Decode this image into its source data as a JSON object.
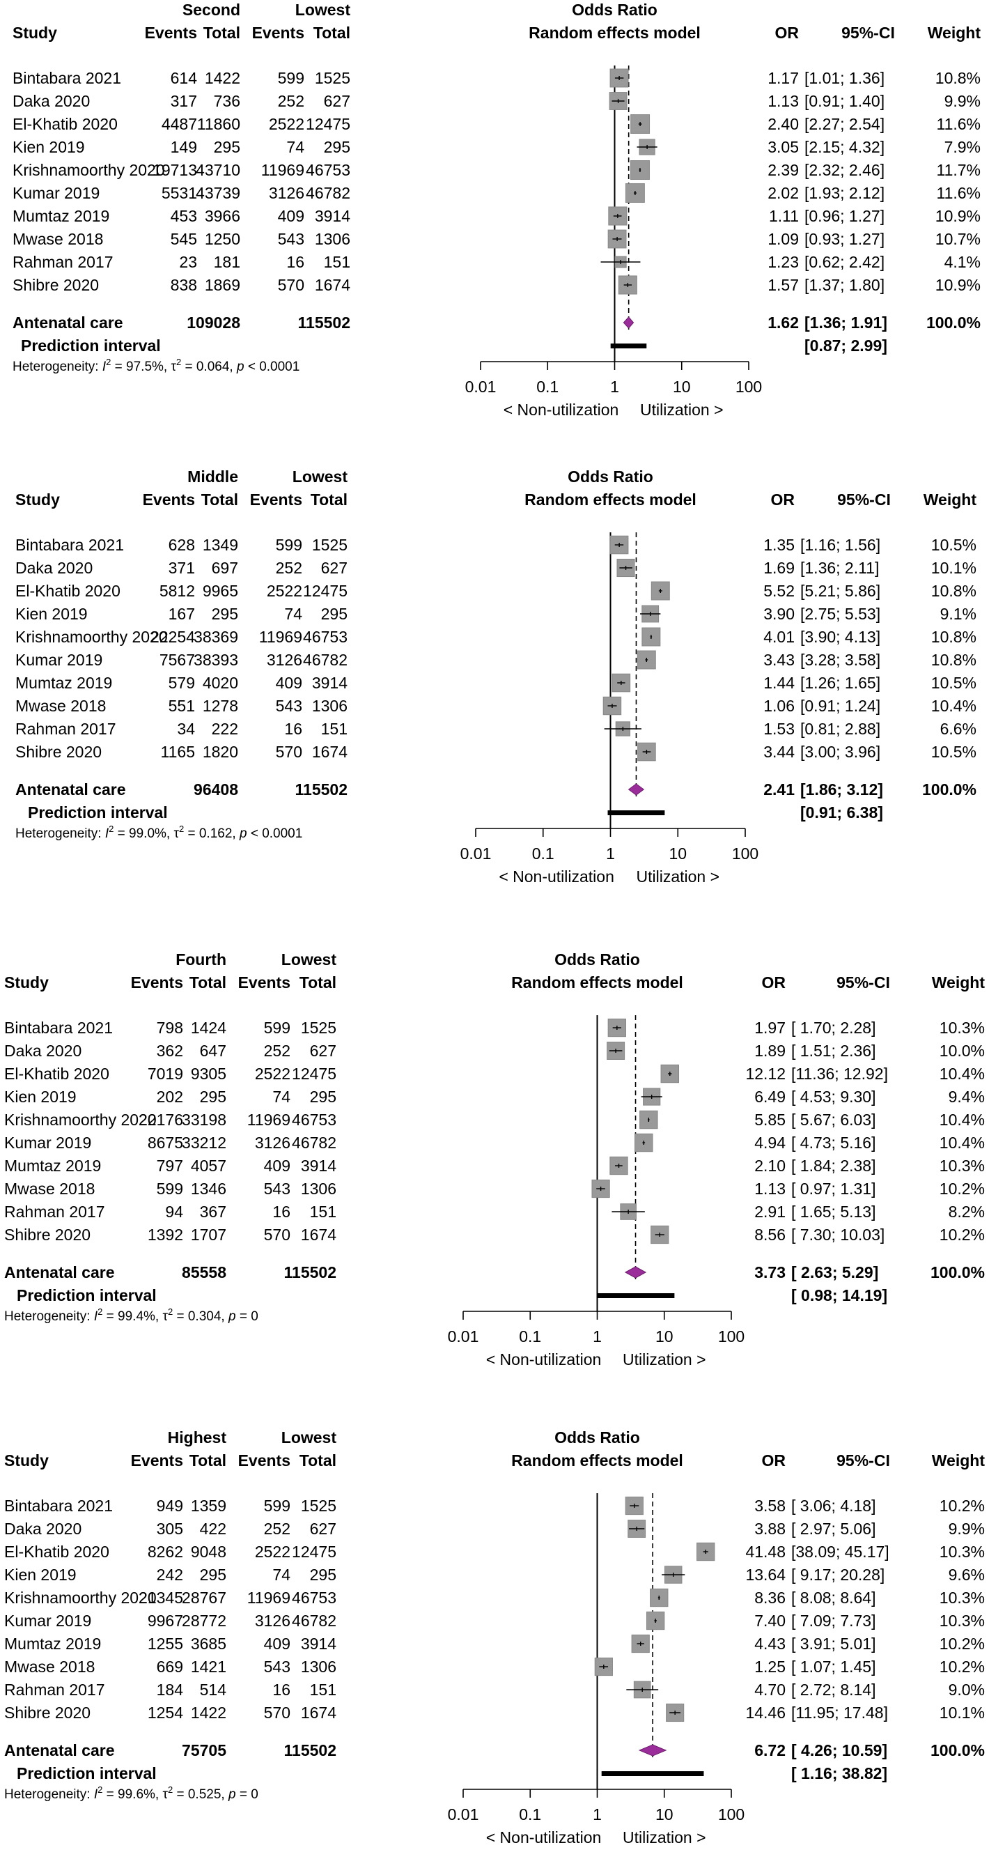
{
  "chart_data": [
    {
      "type": "forest",
      "group_exp": "Second",
      "group_ctrl": "Lowest",
      "title": "Odds Ratio",
      "subtitle": "Random effects model",
      "headers": {
        "study": "Study",
        "events": "Events",
        "total": "Total",
        "or": "OR",
        "ci": "95%-CI",
        "weight": "Weight"
      },
      "studies": [
        {
          "name": "Bintabara 2021",
          "e_exp": "614",
          "n_exp": "1422",
          "e_ctrl": "599",
          "n_ctrl": "1525",
          "or": 1.17,
          "lo": 1.01,
          "hi": 1.36,
          "weight": 10.8,
          "or_txt": "1.17",
          "ci_txt": "[1.01; 1.36]",
          "w_txt": "10.8%"
        },
        {
          "name": "Daka 2020",
          "e_exp": "317",
          "n_exp": "736",
          "e_ctrl": "252",
          "n_ctrl": "627",
          "or": 1.13,
          "lo": 0.91,
          "hi": 1.4,
          "weight": 9.9,
          "or_txt": "1.13",
          "ci_txt": "[0.91; 1.40]",
          "w_txt": "9.9%"
        },
        {
          "name": "El-Khatib 2020",
          "e_exp": "4487",
          "n_exp": "11860",
          "e_ctrl": "2522",
          "n_ctrl": "12475",
          "or": 2.4,
          "lo": 2.27,
          "hi": 2.54,
          "weight": 11.6,
          "or_txt": "2.40",
          "ci_txt": "[2.27; 2.54]",
          "w_txt": "11.6%"
        },
        {
          "name": "Kien 2019",
          "e_exp": "149",
          "n_exp": "295",
          "e_ctrl": "74",
          "n_ctrl": "295",
          "or": 3.05,
          "lo": 2.15,
          "hi": 4.32,
          "weight": 7.9,
          "or_txt": "3.05",
          "ci_txt": "[2.15; 4.32]",
          "w_txt": "7.9%"
        },
        {
          "name": "Krishnamoorthy 2020",
          "e_exp": "19713",
          "n_exp": "43710",
          "e_ctrl": "11969",
          "n_ctrl": "46753",
          "or": 2.39,
          "lo": 2.32,
          "hi": 2.46,
          "weight": 11.7,
          "or_txt": "2.39",
          "ci_txt": "[2.32; 2.46]",
          "w_txt": "11.7%"
        },
        {
          "name": "Kumar 2019",
          "e_exp": "5531",
          "n_exp": "43739",
          "e_ctrl": "3126",
          "n_ctrl": "46782",
          "or": 2.02,
          "lo": 1.93,
          "hi": 2.12,
          "weight": 11.6,
          "or_txt": "2.02",
          "ci_txt": "[1.93; 2.12]",
          "w_txt": "11.6%"
        },
        {
          "name": "Mumtaz 2019",
          "e_exp": "453",
          "n_exp": "3966",
          "e_ctrl": "409",
          "n_ctrl": "3914",
          "or": 1.11,
          "lo": 0.96,
          "hi": 1.27,
          "weight": 10.9,
          "or_txt": "1.11",
          "ci_txt": "[0.96; 1.27]",
          "w_txt": "10.9%"
        },
        {
          "name": "Mwase 2018",
          "e_exp": "545",
          "n_exp": "1250",
          "e_ctrl": "543",
          "n_ctrl": "1306",
          "or": 1.09,
          "lo": 0.93,
          "hi": 1.27,
          "weight": 10.7,
          "or_txt": "1.09",
          "ci_txt": "[0.93; 1.27]",
          "w_txt": "10.7%"
        },
        {
          "name": "Rahman 2017",
          "e_exp": "23",
          "n_exp": "181",
          "e_ctrl": "16",
          "n_ctrl": "151",
          "or": 1.23,
          "lo": 0.62,
          "hi": 2.42,
          "weight": 4.1,
          "or_txt": "1.23",
          "ci_txt": "[0.62; 2.42]",
          "w_txt": "4.1%"
        },
        {
          "name": "Shibre 2020",
          "e_exp": "838",
          "n_exp": "1869",
          "e_ctrl": "570",
          "n_ctrl": "1674",
          "or": 1.57,
          "lo": 1.37,
          "hi": 1.8,
          "weight": 10.9,
          "or_txt": "1.57",
          "ci_txt": "[1.37; 1.80]",
          "w_txt": "10.9%"
        }
      ],
      "pooled": {
        "label": "Antenatal care",
        "n_exp": "109028",
        "n_ctrl": "115502",
        "or": 1.62,
        "lo": 1.36,
        "hi": 1.91,
        "or_txt": "1.62",
        "ci_txt": "[1.36; 1.91]",
        "w_txt": "100.0%"
      },
      "prediction": {
        "label": "Prediction interval",
        "lo": 0.87,
        "hi": 2.99,
        "ci_txt": "[0.87; 2.99]"
      },
      "heterogeneity": {
        "label": "Heterogeneity:",
        "i2": "97.5%",
        "tau2": "0.064",
        "p": "< 0.0001"
      },
      "axis": {
        "ticks": [
          0.01,
          0.1,
          1,
          10,
          100
        ],
        "tick_labels": [
          "0.01",
          "0.1",
          "1",
          "10",
          "100"
        ],
        "scale": "log",
        "left_label": "< Non-utilization",
        "right_label": "Utilization >"
      }
    },
    {
      "type": "forest",
      "group_exp": "Middle",
      "group_ctrl": "Lowest",
      "title": "Odds Ratio",
      "subtitle": "Random effects model",
      "headers": {
        "study": "Study",
        "events": "Events",
        "total": "Total",
        "or": "OR",
        "ci": "95%-CI",
        "weight": "Weight"
      },
      "studies": [
        {
          "name": "Bintabara 2021",
          "e_exp": "628",
          "n_exp": "1349",
          "e_ctrl": "599",
          "n_ctrl": "1525",
          "or": 1.35,
          "lo": 1.16,
          "hi": 1.56,
          "weight": 10.5,
          "or_txt": "1.35",
          "ci_txt": "[1.16; 1.56]",
          "w_txt": "10.5%"
        },
        {
          "name": "Daka 2020",
          "e_exp": "371",
          "n_exp": "697",
          "e_ctrl": "252",
          "n_ctrl": "627",
          "or": 1.69,
          "lo": 1.36,
          "hi": 2.11,
          "weight": 10.1,
          "or_txt": "1.69",
          "ci_txt": "[1.36; 2.11]",
          "w_txt": "10.1%"
        },
        {
          "name": "El-Khatib 2020",
          "e_exp": "5812",
          "n_exp": "9965",
          "e_ctrl": "2522",
          "n_ctrl": "12475",
          "or": 5.52,
          "lo": 5.21,
          "hi": 5.86,
          "weight": 10.8,
          "or_txt": "5.52",
          "ci_txt": "[5.21; 5.86]",
          "w_txt": "10.8%"
        },
        {
          "name": "Kien 2019",
          "e_exp": "167",
          "n_exp": "295",
          "e_ctrl": "74",
          "n_ctrl": "295",
          "or": 3.9,
          "lo": 2.75,
          "hi": 5.53,
          "weight": 9.1,
          "or_txt": "3.90",
          "ci_txt": "[2.75; 5.53]",
          "w_txt": "9.1%"
        },
        {
          "name": "Krishnamoorthy 2020",
          "e_exp": "22254",
          "n_exp": "38369",
          "e_ctrl": "11969",
          "n_ctrl": "46753",
          "or": 4.01,
          "lo": 3.9,
          "hi": 4.13,
          "weight": 10.8,
          "or_txt": "4.01",
          "ci_txt": "[3.90; 4.13]",
          "w_txt": "10.8%"
        },
        {
          "name": "Kumar 2019",
          "e_exp": "7567",
          "n_exp": "38393",
          "e_ctrl": "3126",
          "n_ctrl": "46782",
          "or": 3.43,
          "lo": 3.28,
          "hi": 3.58,
          "weight": 10.8,
          "or_txt": "3.43",
          "ci_txt": "[3.28; 3.58]",
          "w_txt": "10.8%"
        },
        {
          "name": "Mumtaz 2019",
          "e_exp": "579",
          "n_exp": "4020",
          "e_ctrl": "409",
          "n_ctrl": "3914",
          "or": 1.44,
          "lo": 1.26,
          "hi": 1.65,
          "weight": 10.5,
          "or_txt": "1.44",
          "ci_txt": "[1.26; 1.65]",
          "w_txt": "10.5%"
        },
        {
          "name": "Mwase 2018",
          "e_exp": "551",
          "n_exp": "1278",
          "e_ctrl": "543",
          "n_ctrl": "1306",
          "or": 1.06,
          "lo": 0.91,
          "hi": 1.24,
          "weight": 10.4,
          "or_txt": "1.06",
          "ci_txt": "[0.91; 1.24]",
          "w_txt": "10.4%"
        },
        {
          "name": "Rahman 2017",
          "e_exp": "34",
          "n_exp": "222",
          "e_ctrl": "16",
          "n_ctrl": "151",
          "or": 1.53,
          "lo": 0.81,
          "hi": 2.88,
          "weight": 6.6,
          "or_txt": "1.53",
          "ci_txt": "[0.81; 2.88]",
          "w_txt": "6.6%"
        },
        {
          "name": "Shibre 2020",
          "e_exp": "1165",
          "n_exp": "1820",
          "e_ctrl": "570",
          "n_ctrl": "1674",
          "or": 3.44,
          "lo": 3.0,
          "hi": 3.96,
          "weight": 10.5,
          "or_txt": "3.44",
          "ci_txt": "[3.00; 3.96]",
          "w_txt": "10.5%"
        }
      ],
      "pooled": {
        "label": "Antenatal care",
        "n_exp": "96408",
        "n_ctrl": "115502",
        "or": 2.41,
        "lo": 1.86,
        "hi": 3.12,
        "or_txt": "2.41",
        "ci_txt": "[1.86; 3.12]",
        "w_txt": "100.0%"
      },
      "prediction": {
        "label": "Prediction interval",
        "lo": 0.91,
        "hi": 6.38,
        "ci_txt": "[0.91; 6.38]"
      },
      "heterogeneity": {
        "label": "Heterogeneity:",
        "i2": "99.0%",
        "tau2": "0.162",
        "p": "< 0.0001"
      },
      "axis": {
        "ticks": [
          0.01,
          0.1,
          1,
          10,
          100
        ],
        "tick_labels": [
          "0.01",
          "0.1",
          "1",
          "10",
          "100"
        ],
        "scale": "log",
        "left_label": "< Non-utilization",
        "right_label": "Utilization >"
      }
    },
    {
      "type": "forest",
      "group_exp": "Fourth",
      "group_ctrl": "Lowest",
      "title": "Odds Ratio",
      "subtitle": "Random effects model",
      "headers": {
        "study": "Study",
        "events": "Events",
        "total": "Total",
        "or": "OR",
        "ci": "95%-CI",
        "weight": "Weight"
      },
      "studies": [
        {
          "name": "Bintabara 2021",
          "e_exp": "798",
          "n_exp": "1424",
          "e_ctrl": "599",
          "n_ctrl": "1525",
          "or": 1.97,
          "lo": 1.7,
          "hi": 2.28,
          "weight": 10.3,
          "or_txt": "1.97",
          "ci_txt": "[ 1.70;  2.28]",
          "w_txt": "10.3%"
        },
        {
          "name": "Daka 2020",
          "e_exp": "362",
          "n_exp": "647",
          "e_ctrl": "252",
          "n_ctrl": "627",
          "or": 1.89,
          "lo": 1.51,
          "hi": 2.36,
          "weight": 10.0,
          "or_txt": "1.89",
          "ci_txt": "[ 1.51;  2.36]",
          "w_txt": "10.0%"
        },
        {
          "name": "El-Khatib 2020",
          "e_exp": "7019",
          "n_exp": "9305",
          "e_ctrl": "2522",
          "n_ctrl": "12475",
          "or": 12.12,
          "lo": 11.36,
          "hi": 12.92,
          "weight": 10.4,
          "or_txt": "12.12",
          "ci_txt": "[11.36; 12.92]",
          "w_txt": "10.4%"
        },
        {
          "name": "Kien 2019",
          "e_exp": "202",
          "n_exp": "295",
          "e_ctrl": "74",
          "n_ctrl": "295",
          "or": 6.49,
          "lo": 4.53,
          "hi": 9.3,
          "weight": 9.4,
          "or_txt": "6.49",
          "ci_txt": "[ 4.53;  9.30]",
          "w_txt": "9.4%"
        },
        {
          "name": "Krishnamoorthy 2020",
          "e_exp": "22176",
          "n_exp": "33198",
          "e_ctrl": "11969",
          "n_ctrl": "46753",
          "or": 5.85,
          "lo": 5.67,
          "hi": 6.03,
          "weight": 10.4,
          "or_txt": "5.85",
          "ci_txt": "[ 5.67;  6.03]",
          "w_txt": "10.4%"
        },
        {
          "name": "Kumar 2019",
          "e_exp": "8675",
          "n_exp": "33212",
          "e_ctrl": "3126",
          "n_ctrl": "46782",
          "or": 4.94,
          "lo": 4.73,
          "hi": 5.16,
          "weight": 10.4,
          "or_txt": "4.94",
          "ci_txt": "[ 4.73;  5.16]",
          "w_txt": "10.4%"
        },
        {
          "name": "Mumtaz 2019",
          "e_exp": "797",
          "n_exp": "4057",
          "e_ctrl": "409",
          "n_ctrl": "3914",
          "or": 2.1,
          "lo": 1.84,
          "hi": 2.38,
          "weight": 10.3,
          "or_txt": "2.10",
          "ci_txt": "[ 1.84;  2.38]",
          "w_txt": "10.3%"
        },
        {
          "name": "Mwase 2018",
          "e_exp": "599",
          "n_exp": "1346",
          "e_ctrl": "543",
          "n_ctrl": "1306",
          "or": 1.13,
          "lo": 0.97,
          "hi": 1.31,
          "weight": 10.2,
          "or_txt": "1.13",
          "ci_txt": "[ 0.97;  1.31]",
          "w_txt": "10.2%"
        },
        {
          "name": "Rahman 2017",
          "e_exp": "94",
          "n_exp": "367",
          "e_ctrl": "16",
          "n_ctrl": "151",
          "or": 2.91,
          "lo": 1.65,
          "hi": 5.13,
          "weight": 8.2,
          "or_txt": "2.91",
          "ci_txt": "[ 1.65;  5.13]",
          "w_txt": "8.2%"
        },
        {
          "name": "Shibre 2020",
          "e_exp": "1392",
          "n_exp": "1707",
          "e_ctrl": "570",
          "n_ctrl": "1674",
          "or": 8.56,
          "lo": 7.3,
          "hi": 10.03,
          "weight": 10.2,
          "or_txt": "8.56",
          "ci_txt": "[ 7.30; 10.03]",
          "w_txt": "10.2%"
        }
      ],
      "pooled": {
        "label": "Antenatal care",
        "n_exp": "85558",
        "n_ctrl": "115502",
        "or": 3.73,
        "lo": 2.63,
        "hi": 5.29,
        "or_txt": "3.73",
        "ci_txt": "[ 2.63;  5.29]",
        "w_txt": "100.0%"
      },
      "prediction": {
        "label": "Prediction interval",
        "lo": 0.98,
        "hi": 14.19,
        "ci_txt": "[ 0.98; 14.19]"
      },
      "heterogeneity": {
        "label": "Heterogeneity:",
        "i2": "99.4%",
        "tau2": "0.304",
        "p": "= 0"
      },
      "axis": {
        "ticks": [
          0.01,
          0.1,
          1,
          10,
          100
        ],
        "tick_labels": [
          "0.01",
          "0.1",
          "1",
          "10",
          "100"
        ],
        "scale": "log",
        "left_label": "< Non-utilization",
        "right_label": "Utilization >"
      }
    },
    {
      "type": "forest",
      "group_exp": "Highest",
      "group_ctrl": "Lowest",
      "title": "Odds Ratio",
      "subtitle": "Random effects model",
      "headers": {
        "study": "Study",
        "events": "Events",
        "total": "Total",
        "or": "OR",
        "ci": "95%-CI",
        "weight": "Weight"
      },
      "studies": [
        {
          "name": "Bintabara 2021",
          "e_exp": "949",
          "n_exp": "1359",
          "e_ctrl": "599",
          "n_ctrl": "1525",
          "or": 3.58,
          "lo": 3.06,
          "hi": 4.18,
          "weight": 10.2,
          "or_txt": "3.58",
          "ci_txt": "[ 3.06;  4.18]",
          "w_txt": "10.2%"
        },
        {
          "name": "Daka 2020",
          "e_exp": "305",
          "n_exp": "422",
          "e_ctrl": "252",
          "n_ctrl": "627",
          "or": 3.88,
          "lo": 2.97,
          "hi": 5.06,
          "weight": 9.9,
          "or_txt": "3.88",
          "ci_txt": "[ 2.97;  5.06]",
          "w_txt": "9.9%"
        },
        {
          "name": "El-Khatib 2020",
          "e_exp": "8262",
          "n_exp": "9048",
          "e_ctrl": "2522",
          "n_ctrl": "12475",
          "or": 41.48,
          "lo": 38.09,
          "hi": 45.17,
          "weight": 10.3,
          "or_txt": "41.48",
          "ci_txt": "[38.09; 45.17]",
          "w_txt": "10.3%"
        },
        {
          "name": "Kien 2019",
          "e_exp": "242",
          "n_exp": "295",
          "e_ctrl": "74",
          "n_ctrl": "295",
          "or": 13.64,
          "lo": 9.17,
          "hi": 20.28,
          "weight": 9.6,
          "or_txt": "13.64",
          "ci_txt": "[ 9.17; 20.28]",
          "w_txt": "9.6%"
        },
        {
          "name": "Krishnamoorthy 2020",
          "e_exp": "21345",
          "n_exp": "28767",
          "e_ctrl": "11969",
          "n_ctrl": "46753",
          "or": 8.36,
          "lo": 8.08,
          "hi": 8.64,
          "weight": 10.3,
          "or_txt": "8.36",
          "ci_txt": "[ 8.08;  8.64]",
          "w_txt": "10.3%"
        },
        {
          "name": "Kumar 2019",
          "e_exp": "9967",
          "n_exp": "28772",
          "e_ctrl": "3126",
          "n_ctrl": "46782",
          "or": 7.4,
          "lo": 7.09,
          "hi": 7.73,
          "weight": 10.3,
          "or_txt": "7.40",
          "ci_txt": "[ 7.09;  7.73]",
          "w_txt": "10.3%"
        },
        {
          "name": "Mumtaz 2019",
          "e_exp": "1255",
          "n_exp": "3685",
          "e_ctrl": "409",
          "n_ctrl": "3914",
          "or": 4.43,
          "lo": 3.91,
          "hi": 5.01,
          "weight": 10.2,
          "or_txt": "4.43",
          "ci_txt": "[ 3.91;  5.01]",
          "w_txt": "10.2%"
        },
        {
          "name": "Mwase 2018",
          "e_exp": "669",
          "n_exp": "1421",
          "e_ctrl": "543",
          "n_ctrl": "1306",
          "or": 1.25,
          "lo": 1.07,
          "hi": 1.45,
          "weight": 10.2,
          "or_txt": "1.25",
          "ci_txt": "[ 1.07;  1.45]",
          "w_txt": "10.2%"
        },
        {
          "name": "Rahman 2017",
          "e_exp": "184",
          "n_exp": "514",
          "e_ctrl": "16",
          "n_ctrl": "151",
          "or": 4.7,
          "lo": 2.72,
          "hi": 8.14,
          "weight": 9.0,
          "or_txt": "4.70",
          "ci_txt": "[ 2.72;  8.14]",
          "w_txt": "9.0%"
        },
        {
          "name": "Shibre 2020",
          "e_exp": "1254",
          "n_exp": "1422",
          "e_ctrl": "570",
          "n_ctrl": "1674",
          "or": 14.46,
          "lo": 11.95,
          "hi": 17.48,
          "weight": 10.1,
          "or_txt": "14.46",
          "ci_txt": "[11.95; 17.48]",
          "w_txt": "10.1%"
        }
      ],
      "pooled": {
        "label": "Antenatal care",
        "n_exp": "75705",
        "n_ctrl": "115502",
        "or": 6.72,
        "lo": 4.26,
        "hi": 10.59,
        "or_txt": "6.72",
        "ci_txt": "[ 4.26; 10.59]",
        "w_txt": "100.0%"
      },
      "prediction": {
        "label": "Prediction interval",
        "lo": 1.16,
        "hi": 38.82,
        "ci_txt": "[ 1.16; 38.82]"
      },
      "heterogeneity": {
        "label": "Heterogeneity:",
        "i2": "99.6%",
        "tau2": "0.525",
        "p": "= 0"
      },
      "axis": {
        "ticks": [
          0.01,
          0.1,
          1,
          10,
          100
        ],
        "tick_labels": [
          "0.01",
          "0.1",
          "1",
          "10",
          "100"
        ],
        "scale": "log",
        "left_label": "< Non-utilization",
        "right_label": "Utilization >"
      }
    }
  ]
}
